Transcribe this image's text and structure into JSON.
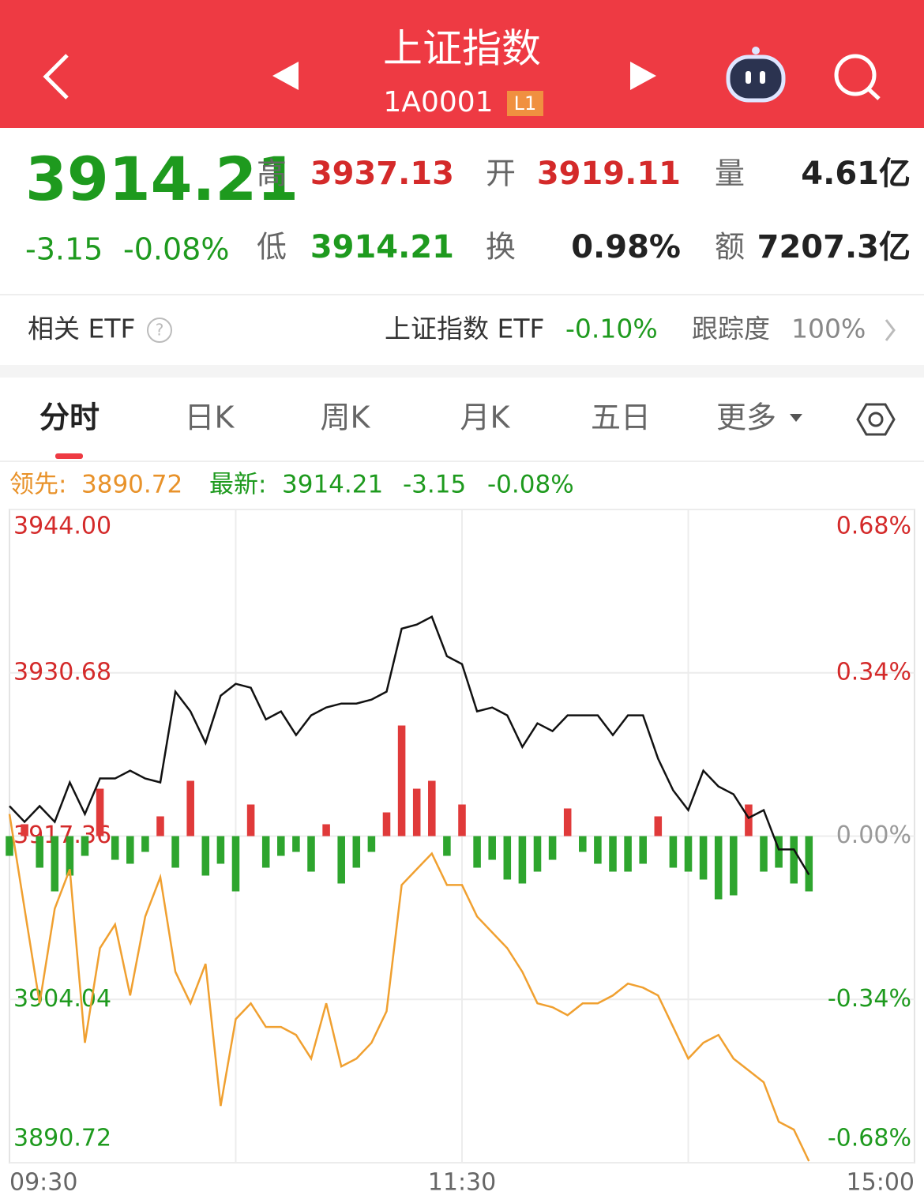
{
  "header": {
    "title": "上证指数",
    "code": "1A0001",
    "badge": "L1"
  },
  "quote": {
    "price": "3914.21",
    "change": "-3.15",
    "change_pct": "-0.08%",
    "fields": [
      {
        "label": "高",
        "value": "3937.13"
      },
      {
        "label": "开",
        "value": "3919.11"
      },
      {
        "label": "量",
        "value": "4.61亿"
      },
      {
        "label": "低",
        "value": "3914.21"
      },
      {
        "label": "换",
        "value": "0.98%"
      },
      {
        "label": "额",
        "value": "7207.3亿"
      }
    ]
  },
  "etf": {
    "label": "相关 ETF",
    "name": "上证指数 ETF",
    "change": "-0.10%",
    "tracking_label": "跟踪度",
    "tracking": "100%"
  },
  "tabs": [
    "分时",
    "日K",
    "周K",
    "月K",
    "五日",
    "更多"
  ],
  "info": {
    "lead_label": "领先:",
    "lead": "3890.72",
    "latest_label": "最新:",
    "latest": "3914.21",
    "change": "-3.15",
    "change_pct": "-0.08%"
  },
  "chart_data": {
    "type": "line",
    "x": [
      0,
      4,
      8,
      12,
      16,
      20,
      24,
      28,
      32,
      36,
      40,
      44,
      48,
      52,
      56,
      60,
      64,
      68,
      72,
      76,
      80,
      84,
      88,
      92,
      96,
      100,
      104,
      108,
      112,
      116,
      120,
      124,
      128,
      132,
      136,
      140,
      144,
      148,
      152,
      156,
      160,
      164,
      168,
      172,
      176,
      180,
      184,
      188,
      192,
      196,
      200,
      204,
      208,
      212
    ],
    "series": [
      {
        "color": "#111111",
        "values": [
          3919.81,
          3918.52,
          3919.81,
          3918.52,
          3921.74,
          3919.16,
          3922.06,
          3922.06,
          3922.7,
          3922.06,
          3921.74,
          3929.14,
          3927.53,
          3924.95,
          3928.81,
          3929.78,
          3929.46,
          3926.88,
          3927.53,
          3925.6,
          3927.21,
          3927.85,
          3928.17,
          3928.17,
          3928.49,
          3929.14,
          3934.28,
          3934.61,
          3935.25,
          3932.03,
          3931.39,
          3927.53,
          3927.85,
          3927.21,
          3924.63,
          3926.56,
          3925.92,
          3927.21,
          3927.21,
          3927.21,
          3925.6,
          3927.21,
          3927.21,
          3923.67,
          3921.09,
          3919.48,
          3922.7,
          3921.41,
          3920.77,
          3918.84,
          3919.48,
          3916.27,
          3916.27,
          3914.21
        ]
      },
      {
        "color": "#f0a030",
        "values": [
          3919.16,
          3911.44,
          3903.72,
          3911.44,
          3914.66,
          3900.5,
          3908.22,
          3910.15,
          3904.36,
          3910.8,
          3914.01,
          3906.29,
          3903.72,
          3906.94,
          3895.35,
          3902.43,
          3903.72,
          3901.79,
          3901.79,
          3901.14,
          3899.21,
          3903.72,
          3898.57,
          3899.21,
          3900.5,
          3903.07,
          3913.37,
          3914.66,
          3915.94,
          3913.37,
          3913.37,
          3910.8,
          3909.51,
          3908.22,
          3906.29,
          3903.72,
          3903.4,
          3902.75,
          3903.72,
          3903.72,
          3904.36,
          3905.33,
          3905.0,
          3904.36,
          3901.79,
          3899.21,
          3900.5,
          3901.14,
          3899.21,
          3898.25,
          3897.28,
          3894.06,
          3893.42,
          3890.85
        ]
      }
    ],
    "volume": {
      "up_color": "#e03a3a",
      "down_color": "#2ea52e",
      "values": [
        -25,
        15,
        -40,
        -70,
        -50,
        -25,
        60,
        -30,
        -35,
        -20,
        25,
        -40,
        70,
        -50,
        -35,
        -70,
        40,
        -40,
        -25,
        -20,
        -45,
        15,
        -60,
        -40,
        -20,
        30,
        140,
        60,
        70,
        -25,
        40,
        -40,
        -30,
        -55,
        -60,
        -45,
        -30,
        35,
        -20,
        -35,
        -45,
        -45,
        -35,
        25,
        -40,
        -45,
        -55,
        -80,
        -75,
        40,
        -45,
        -40,
        -60,
        -70
      ]
    },
    "xlim": [
      0,
      240
    ],
    "xticks": [
      {
        "value": 0,
        "label": "09:30"
      },
      {
        "value": 120,
        "label": "11:30"
      },
      {
        "value": 240,
        "label": "15:00"
      }
    ],
    "ylim": [
      3890.72,
      3944
    ],
    "yticks": [
      {
        "value": 3944,
        "label": "3944.00"
      },
      {
        "value": 3930.68,
        "label": "3930.68"
      },
      {
        "value": 3917.36,
        "label": "3917.36"
      },
      {
        "value": 3904.04,
        "label": "3904.04"
      },
      {
        "value": 3890.72,
        "label": "3890.72"
      }
    ],
    "y2lim": [
      -0.68,
      0.68
    ],
    "y2ticks": [
      {
        "value": 0.68,
        "label": "0.68%"
      },
      {
        "value": 0.34,
        "label": "0.34%"
      },
      {
        "value": 0,
        "label": "0.00%"
      },
      {
        "value": -0.34,
        "label": "-0.34%"
      },
      {
        "value": -0.68,
        "label": "-0.68%"
      }
    ],
    "grid": true
  }
}
